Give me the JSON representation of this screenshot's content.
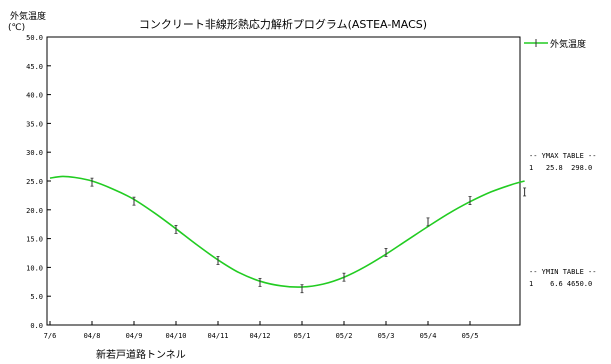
{
  "chart_data": {
    "type": "line",
    "title": "コンクリート非線形熱応力解析プログラム(ASTEA-MACS)",
    "ylabel_line1": "外気温度",
    "ylabel_line2": "(℃)",
    "ylim": [
      0,
      50
    ],
    "yticks": [
      "0.0",
      "5.0",
      "10.0",
      "15.0",
      "20.0",
      "25.0",
      "30.0",
      "35.0",
      "40.0",
      "45.0",
      "50.0"
    ],
    "ytick_values": [
      0,
      5,
      10,
      15,
      20,
      25,
      30,
      35,
      40,
      45,
      50
    ],
    "xticks": [
      "7/6",
      "04/8",
      "04/9",
      "04/10",
      "04/11",
      "04/12",
      "05/1",
      "05/2",
      "05/3",
      "05/4",
      "05/5"
    ],
    "xtick_index": [
      0,
      1,
      2,
      3,
      4,
      5,
      6,
      7,
      8,
      9,
      10
    ],
    "xlim_index": [
      0,
      11.3
    ],
    "grid": false,
    "legend": "top-right",
    "series": [
      {
        "name": "外気温度",
        "color": "#22cc22",
        "x": [
          0,
          0.3,
          0.6,
          1.0,
          1.5,
          2.0,
          2.5,
          3.0,
          3.5,
          4.0,
          4.5,
          5.0,
          5.5,
          6.0,
          6.5,
          7.0,
          7.5,
          8.0,
          8.5,
          9.0,
          9.5,
          10.0,
          10.5,
          11.0,
          11.3
        ],
        "values": [
          25.5,
          25.8,
          25.6,
          25.0,
          23.6,
          21.8,
          19.4,
          16.7,
          13.9,
          11.3,
          9.1,
          7.6,
          6.8,
          6.6,
          7.1,
          8.3,
          10.1,
          12.3,
          14.7,
          17.1,
          19.4,
          21.4,
          23.1,
          24.4,
          25.0
        ]
      }
    ],
    "markers": {
      "x": [
        1.0,
        2.0,
        3.0,
        4.0,
        5.0,
        6.0,
        7.0,
        8.0,
        9.0,
        10.0,
        11.3
      ],
      "values": [
        24.8,
        21.5,
        16.6,
        11.2,
        7.4,
        6.3,
        8.3,
        12.6,
        17.9,
        21.6,
        23.1
      ]
    },
    "annotations": {
      "ymax_header": "-- YMAX TABLE --",
      "ymax_row": "1   25.8  298.0",
      "ymin_header": "-- YMIN TABLE --",
      "ymin_row": "1    6.6 4650.0"
    },
    "footer": "新若戸道路トンネル"
  }
}
